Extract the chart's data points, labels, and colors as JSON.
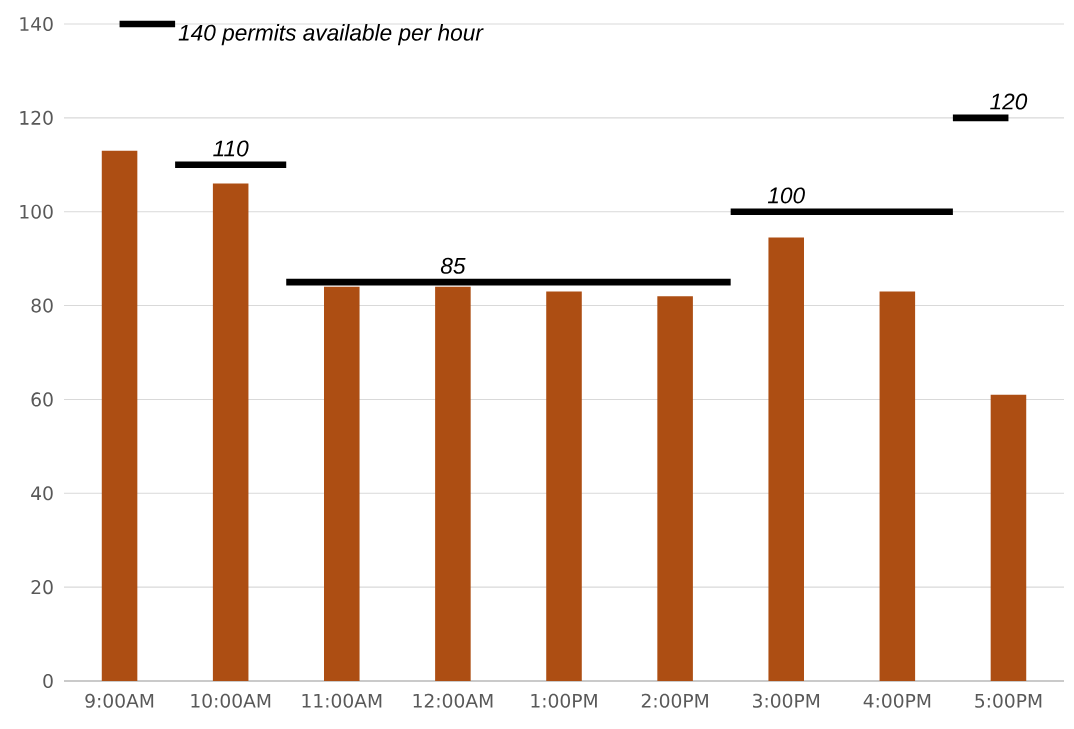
{
  "chart_data": {
    "type": "bar",
    "categories": [
      "9:00AM",
      "10:00AM",
      "11:00AM",
      "12:00AM",
      "1:00PM",
      "2:00PM",
      "3:00PM",
      "4:00PM",
      "5:00PM"
    ],
    "series": [
      {
        "color": "#ad4e13",
        "values": [
          113,
          106,
          84,
          84,
          83,
          82,
          94.5,
          83,
          61
        ]
      },
      {
        "type": "step",
        "color": "#000000",
        "values": [
          140,
          110,
          85,
          85,
          85,
          85,
          100,
          100,
          120
        ]
      }
    ],
    "annotations": [
      {
        "text": "140 permits available per hour",
        "x": "9:00AM",
        "y": 140
      },
      {
        "text": "110",
        "x": "10:00AM",
        "y": 110
      },
      {
        "text": "85",
        "x": "12:00AM",
        "y": 85
      },
      {
        "text": "100",
        "x": "3:00PM",
        "y": 100
      },
      {
        "text": "120",
        "x": "5:00PM",
        "y": 120
      }
    ],
    "ylim": [
      0,
      140
    ],
    "yticks": [
      0,
      20,
      40,
      60,
      80,
      100,
      120,
      140
    ],
    "grid": "y"
  }
}
